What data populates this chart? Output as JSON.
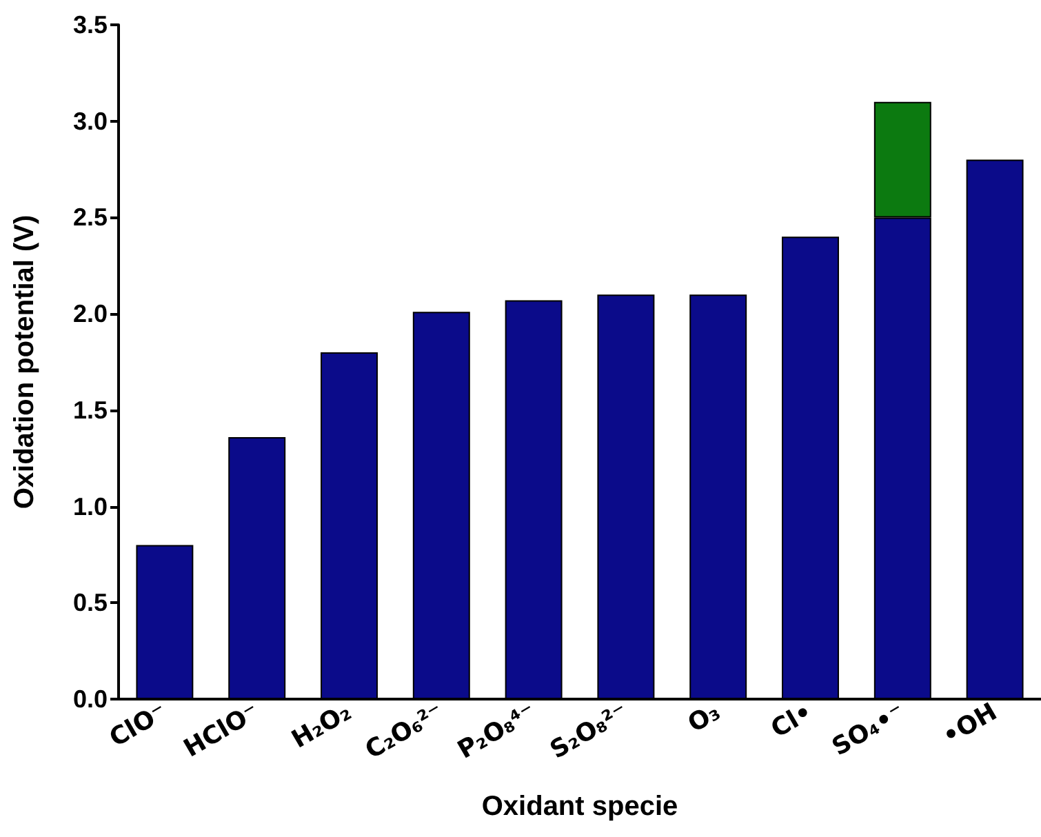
{
  "chart_data": {
    "type": "bar",
    "stacked": true,
    "xlabel": "Oxidant specie",
    "ylabel": "Oxidation potential (V)",
    "categories": [
      "ClO⁻",
      "HClO⁻",
      "H₂O₂",
      "C₂O₆²⁻",
      "P₂O₈⁴⁻",
      "S₂O₈²⁻",
      "O₃",
      "Cl•",
      "SO₄•⁻",
      "•OH"
    ],
    "series": [
      {
        "color": "#0b0b8a",
        "values": [
          0.8,
          1.36,
          1.8,
          2.01,
          2.07,
          2.1,
          2.1,
          2.4,
          2.5,
          2.8
        ]
      },
      {
        "color": "#0c7a10",
        "values": [
          null,
          null,
          null,
          null,
          null,
          null,
          null,
          null,
          0.6,
          null
        ]
      }
    ],
    "ylim": [
      0,
      3.5
    ],
    "yticks": [
      {
        "value": 0,
        "label": "0.0"
      },
      0.5,
      {
        "value": 1,
        "label": "1.0"
      },
      1.5,
      {
        "value": 2,
        "label": "2.0"
      },
      2.5,
      {
        "value": 3,
        "label": "3.0"
      },
      3.5
    ],
    "grid": false
  }
}
